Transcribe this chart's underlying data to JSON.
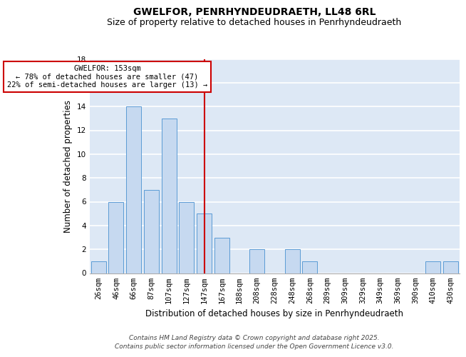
{
  "title": "GWELFOR, PENRHYNDEUDRAETH, LL48 6RL",
  "subtitle": "Size of property relative to detached houses in Penrhyndeudraeth",
  "xlabel": "Distribution of detached houses by size in Penrhyndeudraeth",
  "ylabel": "Number of detached properties",
  "bar_labels": [
    "26sqm",
    "46sqm",
    "66sqm",
    "87sqm",
    "107sqm",
    "127sqm",
    "147sqm",
    "167sqm",
    "188sqm",
    "208sqm",
    "228sqm",
    "248sqm",
    "268sqm",
    "289sqm",
    "309sqm",
    "329sqm",
    "349sqm",
    "369sqm",
    "390sqm",
    "410sqm",
    "430sqm"
  ],
  "bar_values": [
    1,
    6,
    14,
    7,
    13,
    6,
    5,
    3,
    0,
    2,
    0,
    2,
    1,
    0,
    0,
    0,
    0,
    0,
    0,
    1,
    1
  ],
  "bar_color": "#c6d9f0",
  "bar_edgecolor": "#5b9bd5",
  "background_color": "#dde8f5",
  "grid_color": "#ffffff",
  "vline_x": 6,
  "vline_color": "#cc0000",
  "annotation_title": "GWELFOR: 153sqm",
  "annotation_line1": "← 78% of detached houses are smaller (47)",
  "annotation_line2": "22% of semi-detached houses are larger (13) →",
  "annotation_box_edgecolor": "#cc0000",
  "ylim": [
    0,
    18
  ],
  "yticks": [
    0,
    2,
    4,
    6,
    8,
    10,
    12,
    14,
    16,
    18
  ],
  "footer_line1": "Contains HM Land Registry data © Crown copyright and database right 2025.",
  "footer_line2": "Contains public sector information licensed under the Open Government Licence v3.0.",
  "title_fontsize": 10,
  "subtitle_fontsize": 9,
  "axis_label_fontsize": 8.5,
  "tick_fontsize": 7.5,
  "footer_fontsize": 6.5
}
